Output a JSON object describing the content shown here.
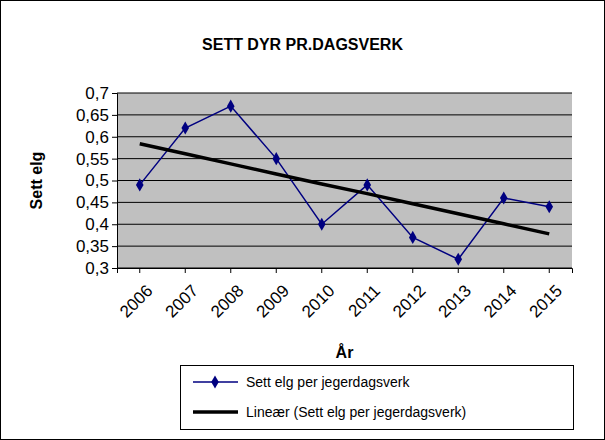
{
  "chart_data": {
    "type": "line",
    "title": "SETT DYR PR.DAGSVERK",
    "x_label": "År",
    "y_label": "Sett elg",
    "categories": [
      "2006",
      "2007",
      "2008",
      "2009",
      "2010",
      "2011",
      "2012",
      "2013",
      "2014",
      "2015"
    ],
    "series": [
      {
        "name": "Sett elg per jegerdagsverk",
        "color": "#000080",
        "marker": "diamond",
        "line_style": "solid",
        "values": [
          0.49,
          0.62,
          0.67,
          0.55,
          0.4,
          0.49,
          0.37,
          0.32,
          0.46,
          0.44
        ]
      },
      {
        "name": "Lineær (Sett elg per jegerdagsverk)",
        "color": "#000000",
        "marker": "none",
        "line_style": "solid",
        "values": [
          0.584,
          0.561,
          0.538,
          0.515,
          0.492,
          0.47,
          0.447,
          0.424,
          0.401,
          0.378
        ]
      }
    ],
    "ylim": [
      0.3,
      0.7
    ],
    "yticks": [
      {
        "value": 0.3,
        "label": "0,3"
      },
      {
        "value": 0.35,
        "label": "0,35"
      },
      {
        "value": 0.4,
        "label": "0,4"
      },
      {
        "value": 0.45,
        "label": "0,45"
      },
      {
        "value": 0.5,
        "label": "0,5"
      },
      {
        "value": 0.55,
        "label": "0,55"
      },
      {
        "value": 0.6,
        "label": "0,6"
      },
      {
        "value": 0.65,
        "label": "0,65"
      },
      {
        "value": 0.7,
        "label": "0,7"
      }
    ],
    "grid": true,
    "legend": "bottom"
  }
}
